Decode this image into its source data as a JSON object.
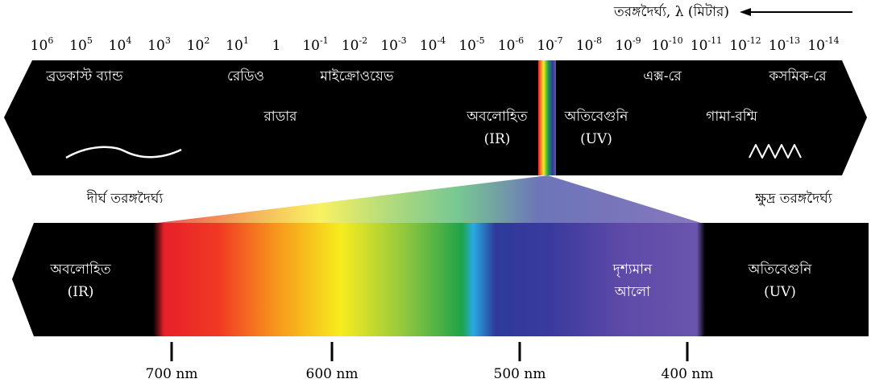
{
  "header": {
    "axis_label": "তরঙ্গদৈর্ঘ্য, λ (মিটার)"
  },
  "scale": [
    {
      "base": "10",
      "exp": "6"
    },
    {
      "base": "10",
      "exp": "5"
    },
    {
      "base": "10",
      "exp": "4"
    },
    {
      "base": "10",
      "exp": "3"
    },
    {
      "base": "10",
      "exp": "2"
    },
    {
      "base": "10",
      "exp": "1"
    },
    {
      "base": "1"
    },
    {
      "base": "10",
      "exp": "-1"
    },
    {
      "base": "10",
      "exp": "-2"
    },
    {
      "base": "10",
      "exp": "-3"
    },
    {
      "base": "10",
      "exp": "-4"
    },
    {
      "base": "10",
      "exp": "-5"
    },
    {
      "base": "10",
      "exp": "-6"
    },
    {
      "base": "10",
      "exp": "-7"
    },
    {
      "base": "10",
      "exp": "-8"
    },
    {
      "base": "10",
      "exp": "-9"
    },
    {
      "base": "10",
      "exp": "-10"
    },
    {
      "base": "10",
      "exp": "-11"
    },
    {
      "base": "10",
      "exp": "-12"
    },
    {
      "base": "10",
      "exp": "-13"
    },
    {
      "base": "10",
      "exp": "-14"
    }
  ],
  "top_band": {
    "labels": [
      {
        "lines": [
          "ব্রডকাস্ট ব্যান্ড"
        ]
      },
      {
        "lines": [
          "রেডিও"
        ]
      },
      {
        "lines": [
          "মাইক্রোওয়েভ"
        ]
      },
      {
        "lines": [
          "রাডার"
        ]
      },
      {
        "lines": [
          "অবলোহিত",
          "(IR)"
        ]
      },
      {
        "lines": [
          "অতিবেগুনি",
          "(UV)"
        ]
      },
      {
        "lines": [
          "এক্স-রে"
        ]
      },
      {
        "lines": [
          "কসমিক-রে"
        ]
      },
      {
        "lines": [
          "গামা-রশ্মি"
        ]
      }
    ]
  },
  "side_labels": [
    "দীর্ঘ তরঙ্গদৈর্ঘ্য",
    "ক্ষুদ্র তরঙ্গদৈর্ঘ্য"
  ],
  "bottom_band": {
    "labels": [
      {
        "lines": [
          "অবলোহিত",
          "(IR)"
        ]
      },
      {
        "lines": [
          "দৃশ্যমান",
          "আলো"
        ]
      },
      {
        "lines": [
          "অতিবেগুনি",
          "(UV)"
        ]
      }
    ]
  },
  "ticks": [
    "700 nm",
    "600 nm",
    "500 nm",
    "400 nm"
  ]
}
